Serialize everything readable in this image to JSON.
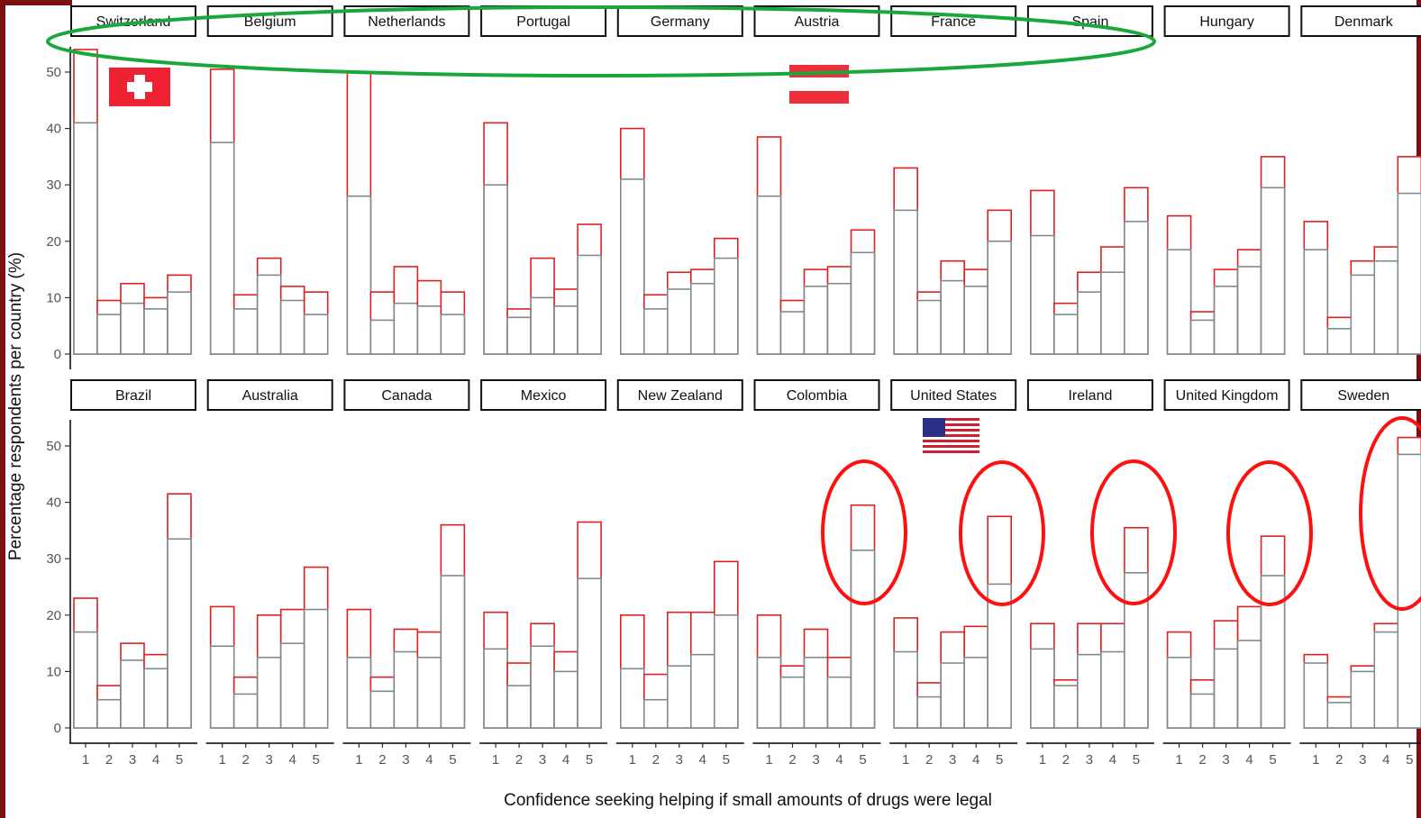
{
  "chart_data": {
    "type": "bar",
    "xlabel": "Confidence seeking helping if small amounts of drugs were legal",
    "ylabel": "Percentage respondents per country (%)",
    "categories": [
      "1",
      "2",
      "3",
      "4",
      "5"
    ],
    "ylim": [
      0,
      55
    ],
    "yticks": [
      0,
      10,
      20,
      30,
      40,
      50
    ],
    "grid": false,
    "series_colors": {
      "inner": "#7f8c8d",
      "outer": "#e02020"
    },
    "panels": [
      {
        "country": "Switzerland",
        "inner": [
          41,
          7,
          9,
          8,
          11
        ],
        "outer": [
          54,
          9.5,
          12.5,
          10,
          14
        ]
      },
      {
        "country": "Belgium",
        "inner": [
          37.5,
          8,
          14,
          9.5,
          7
        ],
        "outer": [
          50.5,
          10.5,
          17,
          12,
          11
        ]
      },
      {
        "country": "Netherlands",
        "inner": [
          28,
          6,
          9,
          8.5,
          7
        ],
        "outer": [
          50,
          11,
          15.5,
          13,
          11
        ]
      },
      {
        "country": "Portugal",
        "inner": [
          30,
          6.5,
          10,
          8.5,
          17.5
        ],
        "outer": [
          41,
          8,
          17,
          11.5,
          23
        ]
      },
      {
        "country": "Germany",
        "inner": [
          31,
          8,
          11.5,
          12.5,
          17
        ],
        "outer": [
          40,
          10.5,
          14.5,
          15,
          20.5
        ]
      },
      {
        "country": "Austria",
        "inner": [
          28,
          7.5,
          12,
          12.5,
          18
        ],
        "outer": [
          38.5,
          9.5,
          15,
          15.5,
          22
        ]
      },
      {
        "country": "France",
        "inner": [
          25.5,
          9.5,
          13,
          12,
          20
        ],
        "outer": [
          33,
          11,
          16.5,
          15,
          25.5
        ]
      },
      {
        "country": "Spain",
        "inner": [
          21,
          7,
          11,
          14.5,
          23.5
        ],
        "outer": [
          29,
          9,
          14.5,
          19,
          29.5
        ]
      },
      {
        "country": "Hungary",
        "inner": [
          18.5,
          6,
          12,
          15.5,
          29.5
        ],
        "outer": [
          24.5,
          7.5,
          15,
          18.5,
          35
        ]
      },
      {
        "country": "Denmark",
        "inner": [
          18.5,
          4.5,
          14,
          16.5,
          28.5
        ],
        "outer": [
          23.5,
          6.5,
          16.5,
          19,
          35
        ]
      },
      {
        "country": "Brazil",
        "inner": [
          17,
          5,
          12,
          10.5,
          33.5
        ],
        "outer": [
          23,
          7.5,
          15,
          13,
          41.5
        ]
      },
      {
        "country": "Australia",
        "inner": [
          14.5,
          6,
          12.5,
          15,
          21
        ],
        "outer": [
          21.5,
          9,
          20,
          21,
          28.5
        ]
      },
      {
        "country": "Canada",
        "inner": [
          12.5,
          6.5,
          13.5,
          12.5,
          27
        ],
        "outer": [
          21,
          9,
          17.5,
          17,
          36
        ]
      },
      {
        "country": "Mexico",
        "inner": [
          14,
          7.5,
          14.5,
          10,
          26.5
        ],
        "outer": [
          20.5,
          11.5,
          18.5,
          13.5,
          36.5
        ]
      },
      {
        "country": "New Zealand",
        "inner": [
          10.5,
          5,
          11,
          13,
          20
        ],
        "outer": [
          20,
          9.5,
          20.5,
          20.5,
          29.5
        ]
      },
      {
        "country": "Colombia",
        "inner": [
          12.5,
          9,
          12.5,
          9,
          31.5
        ],
        "outer": [
          20,
          11,
          17.5,
          12.5,
          39.5
        ]
      },
      {
        "country": "United States",
        "inner": [
          13.5,
          5.5,
          11.5,
          12.5,
          25.5
        ],
        "outer": [
          19.5,
          8,
          17,
          18,
          37.5
        ]
      },
      {
        "country": "Ireland",
        "inner": [
          14,
          7.5,
          13,
          13.5,
          27.5
        ],
        "outer": [
          18.5,
          8.5,
          18.5,
          18.5,
          35.5
        ]
      },
      {
        "country": "United Kingdom",
        "inner": [
          12.5,
          6,
          14,
          15.5,
          27
        ],
        "outer": [
          17,
          8.5,
          19,
          21.5,
          34
        ]
      },
      {
        "country": "Sweden",
        "inner": [
          11.5,
          4.5,
          10,
          17,
          48.5
        ],
        "outer": [
          13,
          5.5,
          11,
          18.5,
          51.5
        ]
      }
    ]
  },
  "flags": {
    "switzerland": {
      "red": "#ee2233",
      "white": "#ffffff"
    },
    "austria": {
      "red": "#ee2d3d",
      "white": "#ffffff"
    },
    "usa": {
      "red": "#cc2233",
      "blue": "#2b2d87",
      "white": "#ffffff"
    }
  },
  "annotations": {
    "ellipse_color": "#1aa83c",
    "circle_color": "#ff1010"
  }
}
